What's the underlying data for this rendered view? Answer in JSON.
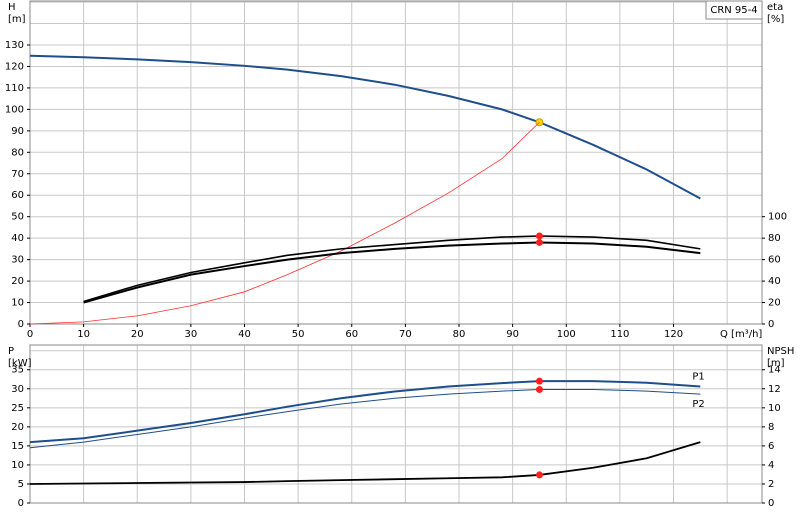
{
  "chart_data": [
    {
      "type": "line",
      "product_label": "CRN 95-4",
      "y_label": "H",
      "y_unit": "[m]",
      "y2_label": "eta",
      "y2_unit": "[%]",
      "x_label": "Q [m³/h]",
      "x": [
        0,
        10,
        20,
        30,
        40,
        48,
        58,
        68,
        78,
        88,
        95,
        105,
        115,
        125
      ],
      "xlim": [
        0,
        136.5
      ],
      "xticks": [
        0,
        10,
        20,
        30,
        40,
        50,
        60,
        70,
        80,
        90,
        100,
        110,
        120
      ],
      "xgrid": [
        0,
        10,
        20,
        30,
        40,
        50,
        60,
        70,
        80,
        90,
        100,
        110,
        120,
        130
      ],
      "ylim": [
        0,
        150.5
      ],
      "yticks": [
        0,
        10,
        20,
        30,
        40,
        50,
        60,
        70,
        80,
        90,
        100,
        110,
        120,
        130
      ],
      "ygrid": [
        0,
        10,
        20,
        30,
        40,
        50,
        60,
        70,
        80,
        90,
        100,
        110,
        120,
        130,
        140,
        150
      ],
      "y2lim": [
        0,
        301
      ],
      "y2ticks": [
        0,
        20,
        40,
        60,
        80,
        100
      ],
      "grid": true,
      "marker_at": 95,
      "series": [
        {
          "color": "#1f4e8c",
          "width": 2,
          "marker_color": "#ffd700",
          "values": [
            125,
            124.3,
            123.3,
            122,
            120.3,
            118.5,
            115.5,
            111.5,
            106.3,
            100,
            94,
            83.5,
            72,
            58.5
          ]
        },
        {
          "color": "#ff3030",
          "width": 0.8,
          "values": [
            0,
            1,
            3.8,
            8.5,
            15,
            23,
            34,
            47,
            61,
            77,
            94,
            null,
            null,
            null
          ]
        },
        {
          "color": "#000000",
          "width": 1.6,
          "axis": "y2",
          "marker_color": "#ff2020",
          "values": [
            null,
            21,
            36,
            48,
            57,
            64,
            70,
            74,
            78,
            81,
            82,
            81,
            78,
            70
          ]
        },
        {
          "color": "#000000",
          "width": 2,
          "axis": "y2",
          "marker_color": "#ff2020",
          "values": [
            null,
            20,
            34,
            46,
            54,
            60,
            66,
            70,
            73,
            75,
            76,
            75,
            72,
            66
          ]
        }
      ]
    },
    {
      "type": "line",
      "y_label": "P",
      "y_unit": "[kW]",
      "y2_label": "NPSH",
      "y2_unit": "[m]",
      "x": [
        0,
        10,
        20,
        30,
        40,
        48,
        58,
        68,
        78,
        88,
        95,
        105,
        115,
        125
      ],
      "xlim": [
        0,
        136.5
      ],
      "xgrid": [
        0,
        10,
        20,
        30,
        40,
        50,
        60,
        70,
        80,
        90,
        100,
        110,
        120,
        130
      ],
      "ylim": [
        0,
        41.5
      ],
      "yticks": [
        0,
        5,
        10,
        15,
        20,
        25,
        30,
        35
      ],
      "ygrid": [
        0,
        5,
        10,
        15,
        20,
        25,
        30,
        35,
        40
      ],
      "y2lim": [
        0,
        16.6
      ],
      "y2ticks": [
        0,
        2,
        4,
        6,
        8,
        10,
        12,
        14
      ],
      "grid": true,
      "marker_at": 95,
      "series": [
        {
          "name": "P1",
          "color": "#1f4e8c",
          "width": 2,
          "marker_color": "#ff2020",
          "values": [
            16,
            17,
            19,
            21,
            23.3,
            25.3,
            27.5,
            29.3,
            30.6,
            31.5,
            32,
            32,
            31.6,
            30.6
          ]
        },
        {
          "name": "P2",
          "color": "#1f4e8c",
          "width": 1,
          "marker_color": "#ff2020",
          "values": [
            14.5,
            16,
            18,
            20,
            22.3,
            24,
            26,
            27.5,
            28.6,
            29.4,
            29.8,
            29.8,
            29.4,
            28.6
          ]
        },
        {
          "color": "#000000",
          "width": 1.8,
          "axis": "y2",
          "marker_color": "#ff2020",
          "values": [
            2,
            2.05,
            2.1,
            2.15,
            2.2,
            2.3,
            2.4,
            2.5,
            2.6,
            2.7,
            2.95,
            3.7,
            4.7,
            6.4
          ]
        }
      ]
    }
  ]
}
